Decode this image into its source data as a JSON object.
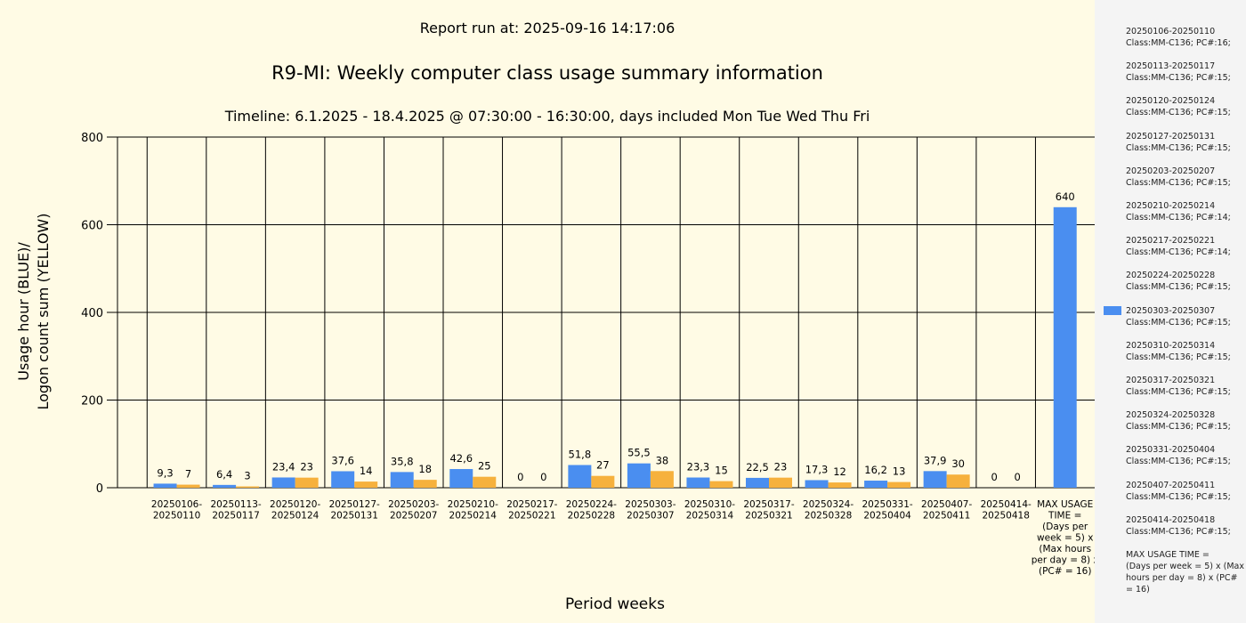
{
  "header": {
    "report_run": "Report run at: 2025-09-16 14:17:06",
    "title": "R9-MI: Weekly computer class usage summary information",
    "timeline": "Timeline:  6.1.2025  - 18.4.2025  @  07:30:00 -  16:30:00, days included Mon Tue Wed Thu Fri"
  },
  "chart_data": {
    "type": "bar",
    "title": "R9-MI: Weekly computer class usage summary information",
    "xlabel": "Period weeks",
    "ylabel_lines": [
      "Usage hour (BLUE)/",
      "Logon count sum (YELLOW)"
    ],
    "ylim": [
      0,
      800
    ],
    "yticks": [
      0,
      200,
      400,
      600,
      800
    ],
    "grid": true,
    "legend_position": "right",
    "colors": {
      "usage": "#4a8ef0",
      "logons": "#f6b13d"
    },
    "categories": [
      [
        "20250106-",
        "20250110"
      ],
      [
        "20250113-",
        "20250117"
      ],
      [
        "20250120-",
        "20250124"
      ],
      [
        "20250127-",
        "20250131"
      ],
      [
        "20250203-",
        "20250207"
      ],
      [
        "20250210-",
        "20250214"
      ],
      [
        "20250217-",
        "20250221"
      ],
      [
        "20250224-",
        "20250228"
      ],
      [
        "20250303-",
        "20250307"
      ],
      [
        "20250310-",
        "20250314"
      ],
      [
        "20250317-",
        "20250321"
      ],
      [
        "20250324-",
        "20250328"
      ],
      [
        "20250331-",
        "20250404"
      ],
      [
        "20250407-",
        "20250411"
      ],
      [
        "20250414-",
        "20250418"
      ],
      [
        "MAX USAGE",
        "TIME =",
        "(Days per",
        "week = 5) x",
        "(Max hours",
        "per day = 8) x",
        "(PC# = 16)"
      ]
    ],
    "series": [
      {
        "values": [
          9.3,
          6.4,
          23.4,
          37.6,
          35.8,
          42.6,
          0,
          51.8,
          55.5,
          23.3,
          22.5,
          17.3,
          16.2,
          37.9,
          0,
          640
        ],
        "labels": [
          "9,3",
          "6,4",
          "23,4",
          "37,6",
          "35,8",
          "42,6",
          "0",
          "51,8",
          "55,5",
          "23,3",
          "22,5",
          "17,3",
          "16,2",
          "37,9",
          "0",
          "640"
        ]
      },
      {
        "values": [
          7,
          3,
          23,
          14,
          18,
          25,
          0,
          27,
          38,
          15,
          23,
          12,
          13,
          30,
          0,
          null
        ],
        "labels": [
          "7",
          "3",
          "23",
          "14",
          "18",
          "25",
          "0",
          "27",
          "38",
          "15",
          "23",
          "12",
          "13",
          "30",
          "0",
          ""
        ]
      }
    ]
  },
  "legend": {
    "items": [
      [
        "20250106-20250110",
        "Class:MM-C136; PC#:16;"
      ],
      [
        "20250113-20250117",
        "Class:MM-C136; PC#:15;"
      ],
      [
        "20250120-20250124",
        "Class:MM-C136; PC#:15;"
      ],
      [
        "20250127-20250131",
        "Class:MM-C136; PC#:15;"
      ],
      [
        "20250203-20250207",
        "Class:MM-C136; PC#:15;"
      ],
      [
        "20250210-20250214",
        "Class:MM-C136; PC#:14;"
      ],
      [
        "20250217-20250221",
        "Class:MM-C136; PC#:14;"
      ],
      [
        "20250224-20250228",
        "Class:MM-C136; PC#:15;"
      ],
      [
        "20250303-20250307",
        "Class:MM-C136; PC#:15;"
      ],
      [
        "20250310-20250314",
        "Class:MM-C136; PC#:15;"
      ],
      [
        "20250317-20250321",
        "Class:MM-C136; PC#:15;"
      ],
      [
        "20250324-20250328",
        "Class:MM-C136; PC#:15;"
      ],
      [
        "20250331-20250404",
        "Class:MM-C136; PC#:15;"
      ],
      [
        "20250407-20250411",
        "Class:MM-C136; PC#:15;"
      ],
      [
        "20250414-20250418",
        "Class:MM-C136; PC#:15;"
      ],
      [
        "MAX USAGE TIME =",
        " (Days per week = 5) x (Max",
        "hours per day = 8) x (PC#",
        "= 16)"
      ]
    ],
    "swatch_color": "#4a8ef0"
  }
}
